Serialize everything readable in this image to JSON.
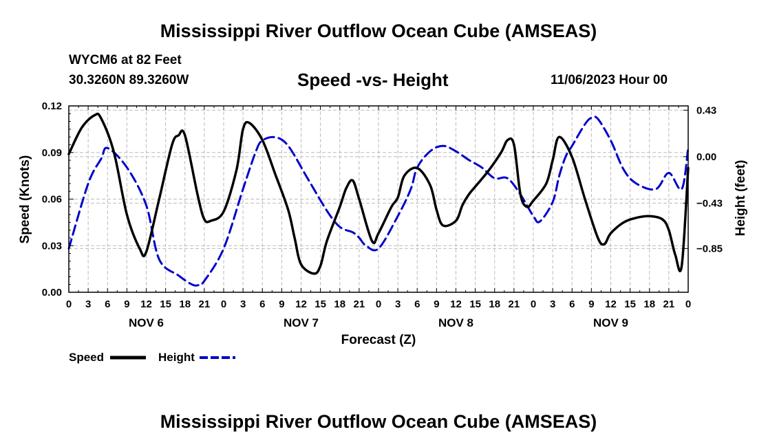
{
  "header": {
    "title": "Mississippi River Outflow Ocean Cube (AMSEAS)",
    "station": "WYCM6 at 82 Feet",
    "coords": "30.3260N  89.3260W",
    "subtitle": "Speed -vs- Height",
    "datetime": "11/06/2023 Hour 00"
  },
  "footer": {
    "title": "Mississippi River Outflow Ocean Cube (AMSEAS)"
  },
  "chart_data": {
    "type": "line",
    "title": "Speed -vs- Height",
    "xlabel": "Forecast (Z)",
    "ylabel": "Speed (Knots)",
    "y2label": "Height (feet)",
    "xlim": [
      0,
      96
    ],
    "ylim": [
      0,
      0.12
    ],
    "y2lim": [
      -1.255,
      0.47
    ],
    "grid": true,
    "x_tick_values": [
      0,
      3,
      6,
      9,
      12,
      15,
      18,
      21,
      24,
      27,
      30,
      33,
      36,
      39,
      42,
      45,
      48,
      51,
      54,
      57,
      60,
      63,
      66,
      69,
      72,
      75,
      78,
      81,
      84,
      87,
      90,
      93,
      96
    ],
    "x_tick_labels": [
      "0",
      "3",
      "6",
      "9",
      "12",
      "15",
      "18",
      "21",
      "0",
      "3",
      "6",
      "9",
      "12",
      "15",
      "18",
      "21",
      "0",
      "3",
      "6",
      "9",
      "12",
      "15",
      "18",
      "21",
      "0",
      "3",
      "6",
      "9",
      "12",
      "15",
      "18",
      "21",
      "0"
    ],
    "day_labels": [
      {
        "x": 12,
        "label": "NOV 6"
      },
      {
        "x": 36,
        "label": "NOV 7"
      },
      {
        "x": 60,
        "label": "NOV 8"
      },
      {
        "x": 84,
        "label": "NOV 9"
      }
    ],
    "y_ticks": [
      0.0,
      0.03,
      0.06,
      0.09,
      0.12
    ],
    "y_tick_labels": [
      "0.00",
      "0.03",
      "0.06",
      "0.09",
      "0.12"
    ],
    "y2_ticks": [
      0.43,
      0.0,
      -0.43,
      -0.85
    ],
    "y2_tick_labels": [
      "0.43",
      "0.00",
      "−0.43",
      "−0.85"
    ],
    "series": [
      {
        "name": "Speed",
        "axis": "left",
        "color": "#000000",
        "dash": "solid",
        "x": [
          0,
          2,
          4,
          5,
          7,
          9,
          11,
          12,
          14,
          16,
          17,
          18,
          20,
          21,
          22,
          24,
          26,
          27,
          28,
          30,
          32,
          34,
          35,
          36,
          38,
          39,
          40,
          42,
          43,
          44,
          45,
          47,
          48,
          50,
          51,
          52,
          54,
          56,
          57,
          58,
          60,
          61,
          62,
          63,
          65,
          67,
          68,
          69,
          70,
          71,
          72,
          74,
          75,
          76,
          78,
          80,
          82,
          83,
          84,
          86,
          88,
          90,
          92,
          93,
          94,
          95,
          96
        ],
        "y": [
          0.089,
          0.106,
          0.114,
          0.112,
          0.09,
          0.05,
          0.028,
          0.026,
          0.06,
          0.095,
          0.101,
          0.101,
          0.062,
          0.047,
          0.046,
          0.052,
          0.079,
          0.105,
          0.109,
          0.098,
          0.076,
          0.053,
          0.035,
          0.018,
          0.012,
          0.017,
          0.033,
          0.055,
          0.067,
          0.072,
          0.06,
          0.033,
          0.038,
          0.055,
          0.061,
          0.075,
          0.08,
          0.069,
          0.053,
          0.043,
          0.046,
          0.056,
          0.063,
          0.068,
          0.078,
          0.09,
          0.098,
          0.095,
          0.063,
          0.055,
          0.059,
          0.07,
          0.085,
          0.1,
          0.087,
          0.06,
          0.035,
          0.031,
          0.038,
          0.045,
          0.048,
          0.049,
          0.047,
          0.04,
          0.024,
          0.017,
          0.08
        ]
      },
      {
        "name": "Height",
        "axis": "right",
        "color": "#0000cc",
        "dash": "dashed",
        "x": [
          0,
          3,
          5,
          6,
          9,
          12,
          14,
          17,
          19,
          20,
          21,
          24,
          27,
          29,
          30,
          32,
          34,
          37,
          40,
          42,
          44,
          45,
          46,
          48,
          51,
          53,
          54,
          56,
          58,
          60,
          62,
          64,
          66,
          68,
          70,
          72,
          73,
          75,
          76,
          77,
          78,
          80,
          81,
          82,
          84,
          86,
          88,
          91,
          93,
          95,
          96
        ],
        "y": [
          -0.85,
          -0.25,
          -0.02,
          0.08,
          -0.1,
          -0.45,
          -0.95,
          -1.1,
          -1.18,
          -1.19,
          -1.15,
          -0.85,
          -0.3,
          0.05,
          0.15,
          0.18,
          0.1,
          -0.2,
          -0.5,
          -0.65,
          -0.7,
          -0.75,
          -0.82,
          -0.85,
          -0.55,
          -0.3,
          -0.1,
          0.05,
          0.1,
          0.05,
          -0.03,
          -0.1,
          -0.2,
          -0.2,
          -0.35,
          -0.55,
          -0.6,
          -0.42,
          -0.18,
          0.0,
          0.1,
          0.3,
          0.36,
          0.35,
          0.15,
          -0.12,
          -0.25,
          -0.3,
          -0.15,
          -0.3,
          0.08
        ]
      }
    ],
    "legend": [
      {
        "label": "Speed",
        "color": "#000000",
        "dash": "solid"
      },
      {
        "label": "Height",
        "color": "#0000cc",
        "dash": "dashed"
      }
    ],
    "legend_position": "bottom-left"
  }
}
